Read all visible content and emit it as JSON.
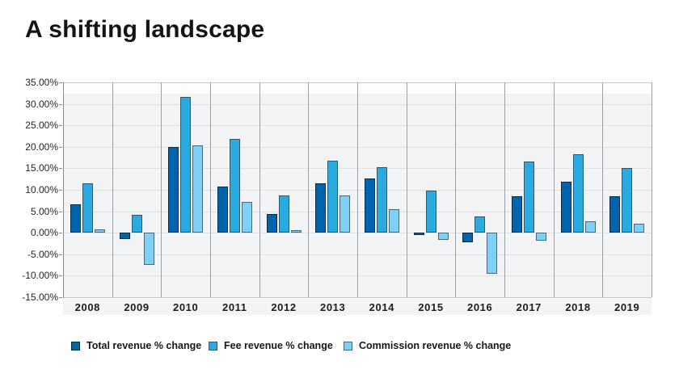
{
  "title": "A shifting landscape",
  "chart_data": {
    "type": "bar",
    "title": "A shifting landscape",
    "categories": [
      "2008",
      "2009",
      "2010",
      "2011",
      "2012",
      "2013",
      "2014",
      "2015",
      "2016",
      "2017",
      "2018",
      "2019"
    ],
    "series": [
      {
        "name": "Total revenue % change",
        "color": "#0063AD",
        "border_color": "#0a2a40",
        "values": [
          6.5,
          -1.5,
          20.0,
          10.7,
          4.3,
          11.5,
          12.6,
          -0.2,
          -2.3,
          8.4,
          11.8,
          8.4
        ]
      },
      {
        "name": "Fee revenue % change",
        "color": "#29ABE2",
        "border_color": "#3d5563",
        "values": [
          11.5,
          4.2,
          31.5,
          21.8,
          8.6,
          16.8,
          15.2,
          9.8,
          3.7,
          16.5,
          18.3,
          15.1
        ]
      },
      {
        "name": "Commission revenue % change",
        "color": "#7DD1F6",
        "border_color": "#4c6777",
        "values": [
          0.7,
          -7.5,
          20.3,
          7.2,
          0.3,
          8.6,
          5.5,
          -1.6,
          -9.5,
          -1.9,
          2.6,
          2.0
        ]
      }
    ],
    "ylim": [
      -15,
      35
    ],
    "ytick_step": 5,
    "ytick_labels": [
      "35.00%",
      "30.00%",
      "25.00%",
      "20.00%",
      "15.00%",
      "10.00%",
      "5.00%",
      "0.00%",
      "-5.00%",
      "-10.00%",
      "-15.00%"
    ],
    "grid": true,
    "legend_position": "bottom"
  }
}
